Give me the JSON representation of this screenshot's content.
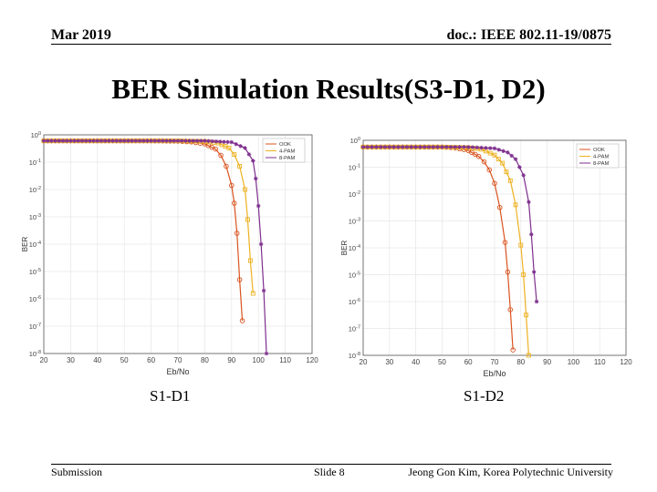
{
  "header": {
    "date": "Mar 2019",
    "doc_id": "doc.: IEEE 802.11-19/0875"
  },
  "title": "BER Simulation Results(S3-D1, D2)",
  "captions": {
    "left": "S1-D1",
    "right": "S1-D2"
  },
  "footer": {
    "left": "Submission",
    "center": "Slide 8",
    "right": "Jeong Gon Kim, Korea Polytechnic University"
  },
  "colors": {
    "ook": "#d9531e",
    "pam4": "#edb120",
    "pam8": "#7e2f8e",
    "grid": "#e6e6e6",
    "axis": "#555555"
  },
  "chart_data": [
    {
      "type": "line",
      "name": "S1-D1",
      "xlabel": "Eb/No",
      "ylabel": "BER",
      "xlim": [
        20,
        120
      ],
      "ylim_exp": [
        -8,
        0
      ],
      "yscale": "log",
      "xticks": [
        20,
        30,
        40,
        50,
        60,
        70,
        80,
        90,
        100,
        110,
        120
      ],
      "yticks": [
        "10^0",
        "10^-1",
        "10^-2",
        "10^-3",
        "10^-4",
        "10^-5",
        "10^-6",
        "10^-7",
        "10^-8"
      ],
      "legend": {
        "position": "top-right",
        "entries": [
          "OOK",
          "4-PAM",
          "8-PAM"
        ]
      },
      "series": [
        {
          "name": "OOK",
          "marker": "circle",
          "x": [
            20,
            30,
            40,
            50,
            60,
            70,
            75,
            80,
            84,
            86,
            88,
            90,
            91,
            92,
            93,
            94
          ],
          "log10_y": [
            -0.22,
            -0.22,
            -0.22,
            -0.22,
            -0.22,
            -0.23,
            -0.26,
            -0.33,
            -0.52,
            -0.75,
            -1.15,
            -1.85,
            -2.5,
            -3.6,
            -5.3,
            -6.8
          ]
        },
        {
          "name": "4-PAM",
          "marker": "square",
          "x": [
            20,
            30,
            40,
            50,
            60,
            70,
            80,
            85,
            89,
            91,
            93,
            95,
            96,
            97,
            98
          ],
          "log10_y": [
            -0.22,
            -0.22,
            -0.22,
            -0.22,
            -0.22,
            -0.22,
            -0.24,
            -0.3,
            -0.48,
            -0.72,
            -1.15,
            -2.0,
            -3.1,
            -4.6,
            -5.8
          ]
        },
        {
          "name": "8-PAM",
          "marker": "star",
          "x": [
            20,
            30,
            40,
            50,
            60,
            70,
            80,
            90,
            95,
            98,
            99,
            100,
            101,
            102,
            103
          ],
          "log10_y": [
            -0.22,
            -0.22,
            -0.22,
            -0.22,
            -0.22,
            -0.22,
            -0.22,
            -0.27,
            -0.48,
            -0.95,
            -1.6,
            -2.6,
            -4.0,
            -5.7,
            -8.0
          ]
        }
      ]
    },
    {
      "type": "line",
      "name": "S1-D2",
      "xlabel": "Eb/No",
      "ylabel": "BER",
      "xlim": [
        20,
        120
      ],
      "ylim_exp": [
        -8,
        0
      ],
      "yscale": "log",
      "xticks": [
        20,
        30,
        40,
        50,
        60,
        70,
        80,
        90,
        100,
        110,
        120
      ],
      "yticks": [
        "10^0",
        "10^-1",
        "10^-2",
        "10^-3",
        "10^-4",
        "10^-5",
        "10^-6",
        "10^-7",
        "10^-8"
      ],
      "legend": {
        "position": "top-right",
        "entries": [
          "OOK",
          "4-PAM",
          "8-PAM"
        ]
      },
      "series": [
        {
          "name": "OOK",
          "marker": "circle",
          "x": [
            20,
            30,
            40,
            50,
            55,
            60,
            64,
            66,
            68,
            70,
            72,
            74,
            75,
            76,
            77
          ],
          "log10_y": [
            -0.25,
            -0.25,
            -0.25,
            -0.25,
            -0.28,
            -0.38,
            -0.6,
            -0.8,
            -1.1,
            -1.6,
            -2.5,
            -3.8,
            -4.9,
            -6.3,
            -7.8
          ]
        },
        {
          "name": "4-PAM",
          "marker": "square",
          "x": [
            20,
            30,
            40,
            50,
            60,
            65,
            70,
            73,
            76,
            78,
            80,
            81,
            82,
            83
          ],
          "log10_y": [
            -0.25,
            -0.25,
            -0.25,
            -0.25,
            -0.27,
            -0.33,
            -0.55,
            -0.85,
            -1.5,
            -2.4,
            -3.9,
            -5.0,
            -6.5,
            -8.0
          ]
        },
        {
          "name": "8-PAM",
          "marker": "star",
          "x": [
            20,
            30,
            40,
            50,
            60,
            70,
            75,
            78,
            81,
            83,
            84,
            85,
            86
          ],
          "log10_y": [
            -0.25,
            -0.25,
            -0.25,
            -0.25,
            -0.25,
            -0.3,
            -0.45,
            -0.7,
            -1.3,
            -2.3,
            -3.5,
            -4.9,
            -6.0
          ]
        }
      ]
    }
  ]
}
